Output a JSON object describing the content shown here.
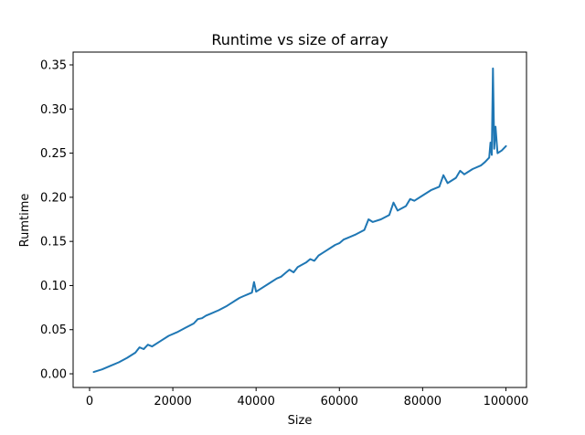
{
  "chart_data": {
    "type": "line",
    "title": "Runtime vs size of array",
    "xlabel": "Size",
    "ylabel": "Rumtime",
    "xlim": [
      -3950,
      104950
    ],
    "ylim": [
      -0.0155,
      0.3645
    ],
    "x_ticks": [
      0,
      20000,
      40000,
      60000,
      80000,
      100000
    ],
    "x_tick_labels": [
      "0",
      "20000",
      "40000",
      "60000",
      "80000",
      "100000"
    ],
    "y_ticks": [
      0.0,
      0.05,
      0.1,
      0.15,
      0.2,
      0.25,
      0.3,
      0.35
    ],
    "y_tick_labels": [
      "0.00",
      "0.05",
      "0.10",
      "0.15",
      "0.20",
      "0.25",
      "0.30",
      "0.35"
    ],
    "grid": false,
    "series": [
      {
        "color": "#1f77b4",
        "x": [
          1000,
          3000,
          5000,
          7000,
          9000,
          11000,
          12000,
          13000,
          14000,
          15000,
          17000,
          19000,
          21000,
          23000,
          25000,
          26000,
          27000,
          28000,
          29000,
          31000,
          33000,
          34000,
          35000,
          36000,
          37000,
          38000,
          39000,
          39500,
          40000,
          41000,
          43000,
          45000,
          46000,
          47000,
          48000,
          49000,
          50000,
          52000,
          53000,
          54000,
          55000,
          56000,
          57000,
          58000,
          59000,
          60000,
          61000,
          62000,
          64000,
          66000,
          67000,
          68000,
          70000,
          72000,
          73000,
          74000,
          76000,
          77000,
          78000,
          80000,
          82000,
          84000,
          85000,
          86000,
          88000,
          89000,
          90000,
          92000,
          94000,
          95000,
          96000,
          96300,
          96600,
          96900,
          97200,
          97500,
          98000,
          99000,
          100000
        ],
        "y": [
          0.002,
          0.005,
          0.009,
          0.013,
          0.018,
          0.024,
          0.03,
          0.028,
          0.033,
          0.031,
          0.037,
          0.043,
          0.047,
          0.052,
          0.057,
          0.062,
          0.063,
          0.066,
          0.068,
          0.072,
          0.077,
          0.08,
          0.083,
          0.086,
          0.088,
          0.09,
          0.092,
          0.104,
          0.093,
          0.096,
          0.102,
          0.108,
          0.11,
          0.114,
          0.118,
          0.115,
          0.121,
          0.126,
          0.13,
          0.128,
          0.134,
          0.137,
          0.14,
          0.143,
          0.146,
          0.148,
          0.152,
          0.154,
          0.158,
          0.163,
          0.175,
          0.172,
          0.175,
          0.18,
          0.194,
          0.185,
          0.19,
          0.198,
          0.196,
          0.202,
          0.208,
          0.212,
          0.225,
          0.216,
          0.222,
          0.23,
          0.226,
          0.232,
          0.236,
          0.24,
          0.245,
          0.262,
          0.248,
          0.346,
          0.255,
          0.28,
          0.25,
          0.253,
          0.258
        ]
      }
    ]
  }
}
